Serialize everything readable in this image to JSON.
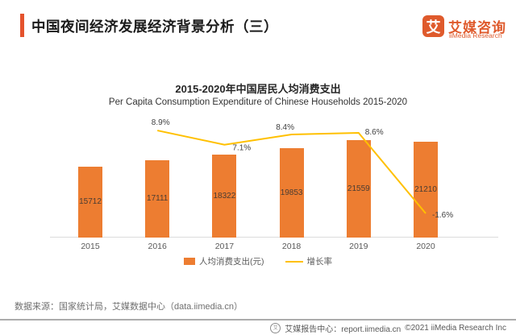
{
  "header": {
    "title": "中国夜间经济发展经济背景分析（三）"
  },
  "logo": {
    "mark": "艾",
    "name_cn": "艾媒咨询",
    "name_en": "iiMedia Research",
    "brand_color": "#DF5A2C"
  },
  "chart_data": {
    "type": "bar",
    "title": "2015-2020年中国居民人均消费支出",
    "subtitle": "Per Capita Consumption Expenditure of Chinese Households 2015-2020",
    "categories": [
      "2015",
      "2016",
      "2017",
      "2018",
      "2019",
      "2020"
    ],
    "series": [
      {
        "name": "人均消费支出(元)",
        "type": "bar",
        "color": "#ED7D31",
        "values": [
          15712,
          17111,
          18322,
          19853,
          21559,
          21210
        ]
      },
      {
        "name": "增长率",
        "type": "line",
        "color": "#FFC000",
        "values": [
          null,
          8.9,
          7.1,
          8.4,
          8.6,
          -1.6
        ],
        "point_labels": [
          "",
          "8.9%",
          "7.1%",
          "8.4%",
          "8.6%",
          "-1.6%"
        ]
      }
    ],
    "legend_position": "bottom",
    "grid": false,
    "value_labels_inside_bars": true
  },
  "source_note": "数据来源：国家统计局，艾媒数据中心（data.iimedia.cn）",
  "footer": {
    "report_center": "艾媒报告中心：report.iimedia.cn",
    "copyright": "©2021  iiMedia Research  Inc",
    "globe_icon": "艾"
  }
}
